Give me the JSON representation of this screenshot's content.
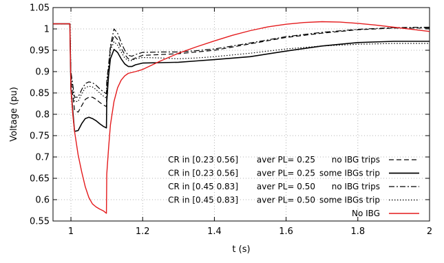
{
  "chart_data": {
    "type": "line",
    "title": "",
    "xlabel": "t (s)",
    "ylabel": "Voltage (pu)",
    "xlim": [
      0.95,
      2.0
    ],
    "ylim": [
      0.55,
      1.05
    ],
    "xticks": [
      1,
      1.2,
      1.4,
      1.6,
      1.8,
      2
    ],
    "xtick_labels": [
      "1",
      "1.2",
      "1.4",
      "1.6",
      "1.8",
      "2"
    ],
    "yticks": [
      0.55,
      0.6,
      0.65,
      0.7,
      0.75,
      0.8,
      0.85,
      0.9,
      0.95,
      1,
      1.05
    ],
    "ytick_labels": [
      "0.55",
      "0.6",
      "0.65",
      "0.7",
      "0.75",
      "0.8",
      "0.85",
      "0.9",
      "0.95",
      "1",
      "1.05"
    ],
    "grid": true,
    "legend_position": "bottom-right",
    "series": [
      {
        "label_cr": "CR in [0.23 0.56]",
        "label_pl": "aver PL= 0.25",
        "label_ibg": "no IBG trips",
        "color": "#000000",
        "dash": "dashed",
        "x": [
          0.95,
          0.997,
          1.0,
          1.01,
          1.02,
          1.03,
          1.04,
          1.05,
          1.06,
          1.07,
          1.08,
          1.09,
          1.099,
          1.1,
          1.105,
          1.11,
          1.12,
          1.13,
          1.14,
          1.15,
          1.16,
          1.17,
          1.18,
          1.2,
          1.25,
          1.3,
          1.35,
          1.4,
          1.5,
          1.6,
          1.7,
          1.8,
          1.9,
          2.0
        ],
        "y": [
          1.012,
          1.012,
          0.88,
          0.81,
          0.805,
          0.82,
          0.835,
          0.84,
          0.84,
          0.835,
          0.828,
          0.822,
          0.818,
          0.86,
          0.9,
          0.955,
          0.985,
          0.975,
          0.955,
          0.94,
          0.93,
          0.928,
          0.932,
          0.938,
          0.94,
          0.942,
          0.946,
          0.95,
          0.965,
          0.98,
          0.99,
          0.998,
          1.002,
          1.002
        ]
      },
      {
        "label_cr": "CR in [0.23 0.56]",
        "label_pl": "aver PL= 0.25",
        "label_ibg": "some IBGs trip",
        "color": "#000000",
        "dash": "solid",
        "x": [
          0.95,
          0.997,
          1.0,
          1.01,
          1.02,
          1.03,
          1.04,
          1.05,
          1.06,
          1.07,
          1.08,
          1.09,
          1.099,
          1.1,
          1.105,
          1.11,
          1.12,
          1.13,
          1.14,
          1.15,
          1.16,
          1.17,
          1.18,
          1.2,
          1.25,
          1.3,
          1.35,
          1.4,
          1.5,
          1.6,
          1.7,
          1.8,
          1.9,
          2.0
        ],
        "y": [
          1.012,
          1.012,
          0.86,
          0.76,
          0.762,
          0.778,
          0.79,
          0.793,
          0.79,
          0.785,
          0.778,
          0.772,
          0.768,
          0.83,
          0.89,
          0.93,
          0.952,
          0.945,
          0.93,
          0.918,
          0.912,
          0.912,
          0.916,
          0.92,
          0.921,
          0.922,
          0.925,
          0.928,
          0.935,
          0.948,
          0.96,
          0.968,
          0.971,
          0.971
        ]
      },
      {
        "label_cr": "CR in [0.45 0.83]",
        "label_pl": "aver PL= 0.50",
        "label_ibg": "no IBG trips",
        "color": "#000000",
        "dash": "dashdot",
        "x": [
          0.95,
          0.997,
          1.0,
          1.01,
          1.02,
          1.03,
          1.04,
          1.05,
          1.06,
          1.07,
          1.08,
          1.09,
          1.099,
          1.1,
          1.105,
          1.11,
          1.12,
          1.13,
          1.14,
          1.15,
          1.16,
          1.17,
          1.18,
          1.2,
          1.25,
          1.3,
          1.35,
          1.4,
          1.5,
          1.6,
          1.7,
          1.8,
          1.9,
          2.0
        ],
        "y": [
          1.012,
          1.012,
          0.9,
          0.84,
          0.84,
          0.858,
          0.872,
          0.876,
          0.874,
          0.868,
          0.86,
          0.853,
          0.848,
          0.88,
          0.915,
          0.96,
          1.0,
          0.99,
          0.968,
          0.95,
          0.938,
          0.936,
          0.94,
          0.945,
          0.946,
          0.946,
          0.949,
          0.953,
          0.967,
          0.982,
          0.992,
          0.999,
          1.003,
          1.004
        ]
      },
      {
        "label_cr": "CR in [0.45 0.83]",
        "label_pl": "aver PL= 0.50",
        "label_ibg": "some IBGs trip",
        "color": "#000000",
        "dash": "dotted",
        "x": [
          0.95,
          0.997,
          1.0,
          1.01,
          1.02,
          1.03,
          1.04,
          1.05,
          1.06,
          1.07,
          1.08,
          1.09,
          1.099,
          1.1,
          1.105,
          1.11,
          1.12,
          1.13,
          1.14,
          1.15,
          1.16,
          1.17,
          1.18,
          1.2,
          1.25,
          1.3,
          1.35,
          1.4,
          1.5,
          1.6,
          1.7,
          1.8,
          1.9,
          2.0
        ],
        "y": [
          1.012,
          1.012,
          0.895,
          0.83,
          0.83,
          0.848,
          0.862,
          0.866,
          0.864,
          0.858,
          0.85,
          0.843,
          0.838,
          0.87,
          0.905,
          0.95,
          0.97,
          0.962,
          0.946,
          0.932,
          0.926,
          0.926,
          0.93,
          0.933,
          0.932,
          0.93,
          0.932,
          0.935,
          0.943,
          0.953,
          0.96,
          0.964,
          0.966,
          0.966
        ]
      },
      {
        "label": "No IBG",
        "color": "#e41a1c",
        "dash": "solid",
        "x": [
          0.95,
          0.997,
          1.0,
          1.005,
          1.01,
          1.02,
          1.03,
          1.04,
          1.05,
          1.06,
          1.07,
          1.08,
          1.09,
          1.099,
          1.1,
          1.105,
          1.11,
          1.12,
          1.13,
          1.14,
          1.15,
          1.16,
          1.18,
          1.2,
          1.25,
          1.3,
          1.35,
          1.4,
          1.45,
          1.5,
          1.55,
          1.6,
          1.65,
          1.7,
          1.75,
          1.8,
          1.85,
          1.9,
          1.95,
          2.0
        ],
        "y": [
          1.012,
          1.012,
          0.86,
          0.8,
          0.76,
          0.705,
          0.665,
          0.63,
          0.605,
          0.59,
          0.583,
          0.578,
          0.574,
          0.568,
          0.66,
          0.72,
          0.775,
          0.83,
          0.862,
          0.88,
          0.89,
          0.896,
          0.9,
          0.905,
          0.925,
          0.943,
          0.958,
          0.972,
          0.985,
          0.996,
          1.005,
          1.011,
          1.015,
          1.017,
          1.016,
          1.013,
          1.009,
          1.004,
          0.999,
          0.994
        ]
      }
    ]
  }
}
